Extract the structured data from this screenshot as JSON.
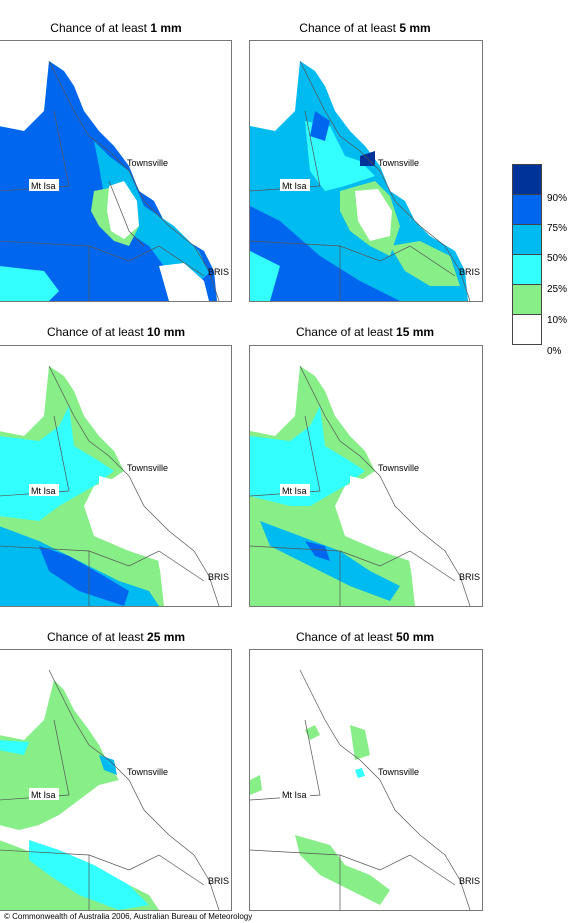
{
  "panels": [
    {
      "prefix": "Chance of at least ",
      "amount": "1 mm"
    },
    {
      "prefix": "Chance of at least ",
      "amount": "5 mm"
    },
    {
      "prefix": "Chance of at least ",
      "amount": "10 mm"
    },
    {
      "prefix": "Chance of at least ",
      "amount": "15 mm"
    },
    {
      "prefix": "Chance of at least ",
      "amount": "25 mm"
    },
    {
      "prefix": "Chance of at least ",
      "amount": "50 mm"
    }
  ],
  "map_labels": {
    "townsville": "Townsville",
    "mt_isa": "Mt Isa",
    "bris": "BRIS"
  },
  "legend": {
    "colors": [
      "#003399",
      "#0066ee",
      "#00bbf0",
      "#33ffff",
      "#88ee88",
      "#ffffff"
    ],
    "labels": [
      "90%",
      "75%",
      "50%",
      "25%",
      "10%",
      "0%"
    ]
  },
  "footer": "© Commonwealth of Australia 2006, Australian Bureau of Meteorology"
}
